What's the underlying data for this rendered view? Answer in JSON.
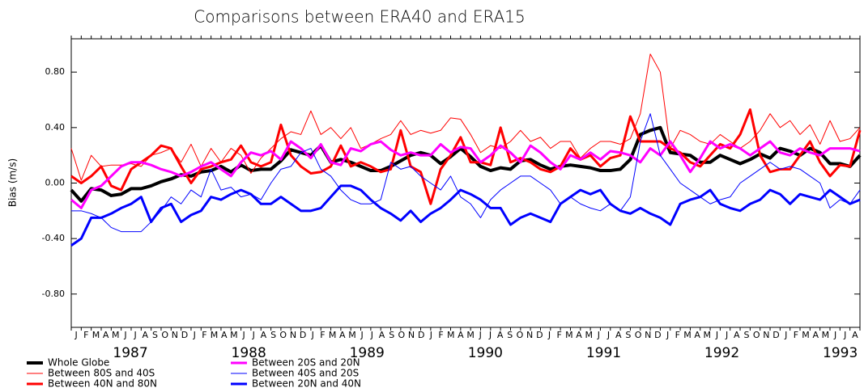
{
  "chart_data": {
    "type": "line",
    "title": "Comparisons between ERA40 and ERA15",
    "y_label": "Bias (m/s)",
    "categories": [
      "J",
      "F",
      "M",
      "A",
      "M",
      "J",
      "J",
      "A",
      "S",
      "O",
      "N",
      "D",
      "J",
      "F",
      "M",
      "A",
      "M",
      "J",
      "J",
      "A",
      "S",
      "O",
      "N",
      "D",
      "J",
      "F",
      "M",
      "A",
      "M",
      "J",
      "J",
      "A",
      "S",
      "O",
      "N",
      "D",
      "J",
      "F",
      "M",
      "A",
      "M",
      "J",
      "J",
      "A",
      "S",
      "O",
      "N",
      "D",
      "J",
      "F",
      "M",
      "A",
      "M",
      "J",
      "J",
      "A",
      "S",
      "O",
      "N",
      "D",
      "J",
      "F",
      "M",
      "A",
      "M",
      "J",
      "J",
      "A",
      "S",
      "O",
      "N",
      "D",
      "J",
      "F",
      "M",
      "A",
      "M",
      "J",
      "J",
      "A"
    ],
    "years": [
      "1987",
      "1988",
      "1989",
      "1990",
      "1991",
      "1992",
      "1993"
    ],
    "ylim": [
      -1.04,
      1.04
    ],
    "yticks": [
      {
        "value": -0.8,
        "label": "-0.80"
      },
      {
        "value": -0.4,
        "label": "-0.40"
      },
      {
        "value": 0,
        "label": "0.00"
      },
      {
        "value": 0.4,
        "label": "0.40"
      },
      {
        "value": 0.8,
        "label": "0.80"
      }
    ],
    "series": [
      {
        "name": "Whole Globe",
        "color": "#000000",
        "line_width": 4,
        "values": [
          -0.05,
          -0.13,
          -0.04,
          -0.05,
          -0.09,
          -0.08,
          -0.04,
          -0.04,
          -0.02,
          0.01,
          0.03,
          0.06,
          0.05,
          0.08,
          0.09,
          0.12,
          0.08,
          0.13,
          0.09,
          0.1,
          0.1,
          0.16,
          0.24,
          0.22,
          0.2,
          0.27,
          0.15,
          0.17,
          0.15,
          0.12,
          0.09,
          0.09,
          0.12,
          0.16,
          0.2,
          0.22,
          0.2,
          0.14,
          0.19,
          0.25,
          0.19,
          0.12,
          0.09,
          0.11,
          0.1,
          0.16,
          0.17,
          0.13,
          0.1,
          0.12,
          0.13,
          0.12,
          0.11,
          0.09,
          0.09,
          0.1,
          0.17,
          0.35,
          0.38,
          0.4,
          0.22,
          0.21,
          0.2,
          0.15,
          0.15,
          0.2,
          0.17,
          0.14,
          0.17,
          0.21,
          0.18,
          0.25,
          0.23,
          0.2,
          0.25,
          0.22,
          0.14,
          0.14,
          0.12,
          0.2
        ]
      },
      {
        "name": "Between 80S and 40S",
        "color": "#ff0000",
        "line_width": 1,
        "values": [
          0.25,
          0.02,
          0.2,
          0.12,
          0.13,
          0.13,
          0.14,
          0.12,
          0.2,
          0.22,
          0.25,
          0.15,
          0.28,
          0.12,
          0.25,
          0.15,
          0.25,
          0.2,
          0.07,
          0.18,
          0.25,
          0.32,
          0.37,
          0.35,
          0.52,
          0.35,
          0.4,
          0.32,
          0.4,
          0.25,
          0.28,
          0.32,
          0.35,
          0.45,
          0.35,
          0.38,
          0.36,
          0.38,
          0.47,
          0.46,
          0.35,
          0.22,
          0.27,
          0.25,
          0.3,
          0.38,
          0.3,
          0.33,
          0.25,
          0.3,
          0.3,
          0.18,
          0.25,
          0.3,
          0.3,
          0.28,
          0.32,
          0.5,
          0.93,
          0.8,
          0.25,
          0.38,
          0.35,
          0.3,
          0.28,
          0.35,
          0.3,
          0.25,
          0.3,
          0.38,
          0.5,
          0.4,
          0.45,
          0.35,
          0.42,
          0.28,
          0.45,
          0.3,
          0.32,
          0.4
        ]
      },
      {
        "name": "Between 40N and 80N",
        "color": "#ff0000",
        "line_width": 3,
        "values": [
          0.05,
          0.0,
          0.05,
          0.12,
          -0.02,
          -0.05,
          0.1,
          0.15,
          0.2,
          0.27,
          0.25,
          0.12,
          0.0,
          0.1,
          0.12,
          0.15,
          0.17,
          0.27,
          0.15,
          0.12,
          0.15,
          0.42,
          0.2,
          0.12,
          0.07,
          0.08,
          0.12,
          0.27,
          0.12,
          0.15,
          0.12,
          0.08,
          0.1,
          0.38,
          0.12,
          0.08,
          -0.15,
          0.1,
          0.2,
          0.33,
          0.15,
          0.15,
          0.13,
          0.4,
          0.15,
          0.18,
          0.15,
          0.1,
          0.08,
          0.12,
          0.25,
          0.17,
          0.2,
          0.12,
          0.18,
          0.2,
          0.48,
          0.3,
          0.3,
          0.3,
          0.25,
          0.22,
          0.15,
          0.12,
          0.2,
          0.28,
          0.25,
          0.35,
          0.53,
          0.2,
          0.08,
          0.1,
          0.1,
          0.2,
          0.3,
          0.15,
          0.05,
          0.13,
          0.12,
          0.38
        ]
      },
      {
        "name": "Between 20S and 20N",
        "color": "#ff00ff",
        "line_width": 3,
        "values": [
          -0.12,
          -0.18,
          -0.05,
          -0.02,
          0.05,
          0.12,
          0.15,
          0.15,
          0.13,
          0.1,
          0.08,
          0.05,
          0.08,
          0.12,
          0.15,
          0.1,
          0.05,
          0.15,
          0.22,
          0.2,
          0.23,
          0.17,
          0.3,
          0.25,
          0.18,
          0.28,
          0.15,
          0.13,
          0.25,
          0.23,
          0.28,
          0.3,
          0.24,
          0.2,
          0.22,
          0.2,
          0.2,
          0.28,
          0.22,
          0.26,
          0.25,
          0.15,
          0.2,
          0.27,
          0.22,
          0.15,
          0.27,
          0.22,
          0.15,
          0.1,
          0.2,
          0.17,
          0.22,
          0.17,
          0.23,
          0.22,
          0.2,
          0.15,
          0.25,
          0.2,
          0.3,
          0.2,
          0.08,
          0.18,
          0.3,
          0.25,
          0.28,
          0.25,
          0.2,
          0.25,
          0.3,
          0.22,
          0.2,
          0.25,
          0.22,
          0.2,
          0.25,
          0.25,
          0.25,
          0.23
        ]
      },
      {
        "name": "Between 40S and 20S",
        "color": "#0000ff",
        "line_width": 1,
        "values": [
          -0.2,
          -0.2,
          -0.22,
          -0.25,
          -0.32,
          -0.35,
          -0.35,
          -0.35,
          -0.28,
          -0.2,
          -0.1,
          -0.15,
          -0.05,
          -0.1,
          0.1,
          -0.05,
          -0.03,
          -0.1,
          -0.08,
          -0.12,
          0.0,
          0.1,
          0.12,
          0.22,
          0.25,
          0.1,
          0.05,
          -0.05,
          -0.12,
          -0.15,
          -0.15,
          -0.12,
          0.15,
          0.1,
          0.12,
          0.05,
          0.0,
          -0.05,
          0.05,
          -0.1,
          -0.15,
          -0.25,
          -0.12,
          -0.05,
          0.0,
          0.05,
          0.05,
          0.0,
          -0.05,
          -0.15,
          -0.1,
          -0.15,
          -0.18,
          -0.2,
          -0.15,
          -0.2,
          -0.1,
          0.3,
          0.5,
          0.2,
          0.1,
          0.0,
          -0.05,
          -0.1,
          -0.15,
          -0.12,
          -0.1,
          0.0,
          0.05,
          0.1,
          0.15,
          0.1,
          0.12,
          0.1,
          0.05,
          0.0,
          -0.18,
          -0.12,
          -0.15,
          -0.05
        ]
      },
      {
        "name": "Between 20N and 40N",
        "color": "#0000ff",
        "line_width": 3,
        "values": [
          -0.45,
          -0.4,
          -0.25,
          -0.25,
          -0.22,
          -0.18,
          -0.15,
          -0.1,
          -0.28,
          -0.18,
          -0.15,
          -0.28,
          -0.23,
          -0.2,
          -0.1,
          -0.12,
          -0.08,
          -0.05,
          -0.08,
          -0.15,
          -0.15,
          -0.1,
          -0.15,
          -0.2,
          -0.2,
          -0.18,
          -0.1,
          -0.02,
          -0.02,
          -0.05,
          -0.12,
          -0.18,
          -0.22,
          -0.27,
          -0.2,
          -0.28,
          -0.22,
          -0.18,
          -0.12,
          -0.05,
          -0.08,
          -0.12,
          -0.18,
          -0.18,
          -0.3,
          -0.25,
          -0.22,
          -0.25,
          -0.28,
          -0.15,
          -0.1,
          -0.05,
          -0.08,
          -0.05,
          -0.15,
          -0.2,
          -0.22,
          -0.18,
          -0.22,
          -0.25,
          -0.3,
          -0.15,
          -0.12,
          -0.1,
          -0.05,
          -0.15,
          -0.18,
          -0.2,
          -0.15,
          -0.12,
          -0.05,
          -0.08,
          -0.15,
          -0.08,
          -0.1,
          -0.12,
          -0.05,
          -0.1,
          -0.15,
          -0.12
        ]
      }
    ]
  }
}
